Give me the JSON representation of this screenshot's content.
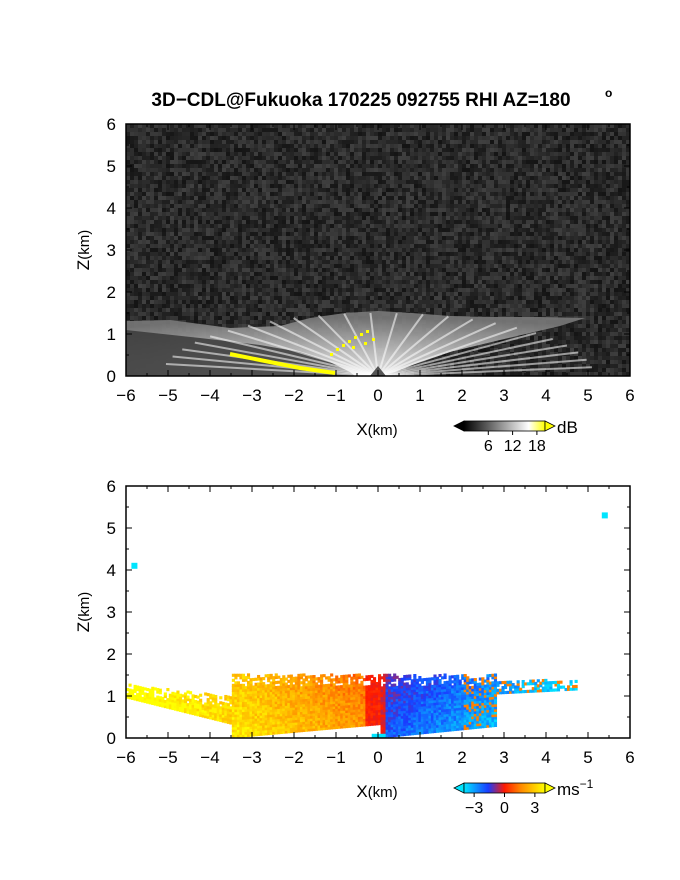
{
  "title": "3D−CDL@Fukuoka 170225 092755 RHI AZ=180",
  "title_degree": "o",
  "chart_data": [
    {
      "type": "heatmap",
      "quantity": "backscatter intensity",
      "xlabel_main": "X",
      "xlabel_unit": "(km)",
      "ylabel_main": "Z",
      "ylabel_unit": "(km)",
      "xlim": [
        -6,
        6
      ],
      "ylim": [
        0,
        6
      ],
      "xticks": [
        -6,
        -5,
        -4,
        -3,
        -2,
        -1,
        0,
        1,
        2,
        3,
        4,
        5,
        6
      ],
      "yticks": [
        0,
        1,
        2,
        3,
        4,
        5,
        6
      ],
      "colorbar": {
        "unit": "dB",
        "ticks": [
          6,
          12,
          18
        ],
        "range": [
          0,
          20
        ],
        "colors": [
          "#000000",
          "#ffffff",
          "#ffff00"
        ]
      },
      "echo_layer_top_km": [
        {
          "x": -6,
          "z": 1.3
        },
        {
          "x": -3,
          "z": 1.2
        },
        {
          "x": -1.5,
          "z": 1.45
        },
        {
          "x": 0,
          "z": 1.5
        },
        {
          "x": 1.5,
          "z": 1.45
        },
        {
          "x": 3,
          "z": 1.35
        },
        {
          "x": 5,
          "z": 1.3
        }
      ]
    },
    {
      "type": "heatmap",
      "quantity": "Doppler velocity",
      "xlabel_main": "X",
      "xlabel_unit": "(km)",
      "ylabel_main": "Z",
      "ylabel_unit": "(km)",
      "xlim": [
        -6,
        6
      ],
      "ylim": [
        0,
        6
      ],
      "xticks": [
        -6,
        -5,
        -4,
        -3,
        -2,
        -1,
        0,
        1,
        2,
        3,
        4,
        5,
        6
      ],
      "yticks": [
        0,
        1,
        2,
        3,
        4,
        5,
        6
      ],
      "colorbar": {
        "unit_main": "ms",
        "unit_exp": "−1",
        "ticks": [
          -3,
          0,
          3
        ],
        "tick_labels": [
          "−3",
          "0",
          "3"
        ],
        "range": [
          -4,
          4
        ],
        "colors": [
          "#00e5ff",
          "#1a3cff",
          "#ff1a00",
          "#ff8800",
          "#ffff00"
        ]
      },
      "velocity_regions": [
        {
          "x_range": [
            -6,
            -3.5
          ],
          "z_range": [
            0.9,
            1.3
          ],
          "velocity": 3.5,
          "color": "yellow"
        },
        {
          "x_range": [
            -3.5,
            -0.2
          ],
          "z_range": [
            0.05,
            1.5
          ],
          "velocity": 1.5,
          "color": "orange"
        },
        {
          "x_range": [
            0.1,
            2.8
          ],
          "z_range": [
            0.05,
            1.5
          ],
          "velocity": -2.0,
          "color": "blue"
        }
      ],
      "isolated_points": [
        {
          "x": -5.8,
          "z": 4.1
        },
        {
          "x": 5.4,
          "z": 5.3
        }
      ]
    }
  ],
  "colors": {
    "background": "#ffffff",
    "axes_frame": "#000000",
    "noise_dark": "#1e1e1e"
  }
}
